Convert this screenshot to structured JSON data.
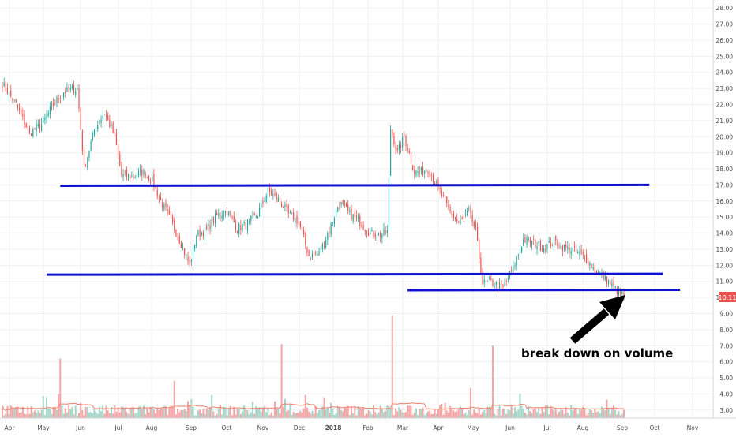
{
  "chart_data": {
    "type": "candlestick",
    "price_axis": {
      "min": 2.5,
      "max": 28.5,
      "ticks": [
        "28.00",
        "27.00",
        "26.00",
        "25.00",
        "24.00",
        "23.00",
        "22.00",
        "21.00",
        "20.00",
        "19.00",
        "18.00",
        "17.00",
        "16.00",
        "15.00",
        "14.00",
        "13.00",
        "12.00",
        "11.00",
        "10.00",
        "9.00",
        "8.00",
        "7.00",
        "6.00",
        "5.00",
        "4.00",
        "3.00"
      ],
      "current_price_label": "10.11",
      "current_price": 10.11,
      "current_price_color": "#ef5350"
    },
    "time_axis": {
      "labels": [
        "Apr",
        "May",
        "Jun",
        "Jul",
        "Aug",
        "Sep",
        "Oct",
        "Nov",
        "Dec",
        "2018",
        "Feb",
        "Mar",
        "Apr",
        "May",
        "Jun",
        "Jul",
        "Aug",
        "Sep",
        "Oct",
        "Nov"
      ],
      "bold_labels": [
        "2018"
      ]
    },
    "colors": {
      "up": "#26a69a",
      "down": "#ef5350",
      "volume_up": "#a5d6c8",
      "volume_down": "#f4a6a6",
      "volume_ma": "#ef7f6b",
      "trendline": "#1010d0",
      "arrow": "#000000",
      "grid": "#eef0f4"
    },
    "key_points": {
      "bar_index_range": [
        0,
        365
      ],
      "price_path": [
        [
          0,
          23.3
        ],
        [
          8,
          22.0
        ],
        [
          16,
          20.2
        ],
        [
          24,
          20.9
        ],
        [
          30,
          22.0
        ],
        [
          36,
          22.8
        ],
        [
          44,
          23.0
        ],
        [
          48,
          18.0
        ],
        [
          54,
          20.4
        ],
        [
          60,
          21.5
        ],
        [
          66,
          20.0
        ],
        [
          70,
          17.6
        ],
        [
          76,
          17.5
        ],
        [
          82,
          17.8
        ],
        [
          88,
          17.3
        ],
        [
          92,
          16.2
        ],
        [
          98,
          15.0
        ],
        [
          104,
          13.6
        ],
        [
          110,
          12.0
        ],
        [
          114,
          13.9
        ],
        [
          120,
          14.2
        ],
        [
          126,
          15.1
        ],
        [
          132,
          15.4
        ],
        [
          138,
          14.3
        ],
        [
          144,
          14.6
        ],
        [
          150,
          15.2
        ],
        [
          156,
          16.6
        ],
        [
          162,
          16.1
        ],
        [
          168,
          15.2
        ],
        [
          174,
          14.7
        ],
        [
          180,
          12.6
        ],
        [
          186,
          12.7
        ],
        [
          192,
          14.2
        ],
        [
          198,
          15.9
        ],
        [
          204,
          15.2
        ],
        [
          210,
          14.7
        ],
        [
          216,
          14.0
        ],
        [
          222,
          13.9
        ],
        [
          226,
          14.1
        ],
        [
          228,
          20.5
        ],
        [
          232,
          19.0
        ],
        [
          236,
          20.0
        ],
        [
          242,
          17.8
        ],
        [
          246,
          17.8
        ],
        [
          250,
          18.0
        ],
        [
          256,
          16.8
        ],
        [
          262,
          15.5
        ],
        [
          268,
          14.6
        ],
        [
          274,
          15.3
        ],
        [
          278,
          14.1
        ],
        [
          282,
          10.9
        ],
        [
          288,
          10.9
        ],
        [
          294,
          10.6
        ],
        [
          300,
          11.8
        ],
        [
          306,
          13.6
        ],
        [
          312,
          13.4
        ],
        [
          318,
          13.1
        ],
        [
          324,
          13.5
        ],
        [
          330,
          13.1
        ],
        [
          336,
          12.9
        ],
        [
          342,
          12.5
        ],
        [
          348,
          11.7
        ],
        [
          354,
          11.2
        ],
        [
          360,
          10.5
        ],
        [
          365,
          10.1
        ]
      ],
      "volume_spikes": [
        [
          34,
          6.2
        ],
        [
          101,
          4.8
        ],
        [
          164,
          7.1
        ],
        [
          229,
          8.9
        ],
        [
          288,
          7.0
        ]
      ]
    },
    "trendlines": [
      {
        "from": [
          34,
          16.95
        ],
        "to": [
          380,
          17.0
        ]
      },
      {
        "from": [
          26,
          11.42
        ],
        "to": [
          388,
          11.47
        ]
      },
      {
        "from": [
          238,
          10.45
        ],
        "to": [
          398,
          10.47
        ]
      }
    ],
    "annotations": [
      {
        "text": "break down on volume",
        "arrow": "pointing up-right to last bar"
      }
    ]
  }
}
